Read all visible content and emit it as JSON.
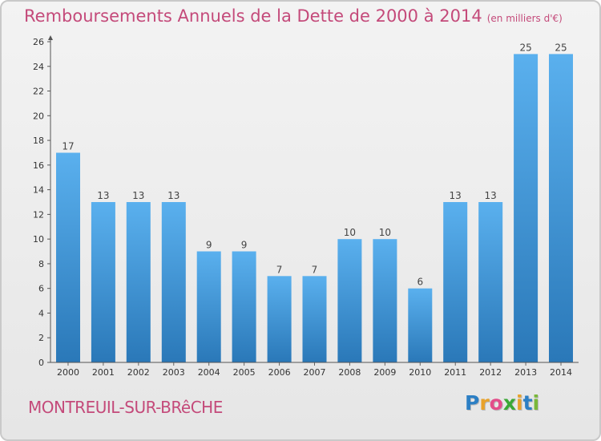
{
  "title": "Remboursements Annuels de la Dette de 2000 à 2014",
  "title_unit": "(en milliers d'€)",
  "place": "MONTREUIL-SUR-BRêCHE",
  "logo": {
    "letters": [
      "P",
      "r",
      "o",
      "x",
      "i",
      "t",
      "i"
    ],
    "colors": [
      "#2c7fc4",
      "#e8a22a",
      "#e34d8a",
      "#3aa836",
      "#e8a22a",
      "#2c7fc4",
      "#7ab83a"
    ]
  },
  "colors": {
    "bar_light": "#5ab0ee",
    "bar_dark": "#2a78b8",
    "accent": "#c44a7a"
  },
  "chart_data": {
    "type": "bar",
    "categories": [
      "2000",
      "2001",
      "2002",
      "2003",
      "2004",
      "2005",
      "2006",
      "2007",
      "2008",
      "2009",
      "2010",
      "2011",
      "2012",
      "2013",
      "2014"
    ],
    "values": [
      17,
      13,
      13,
      13,
      9,
      9,
      7,
      7,
      10,
      10,
      6,
      13,
      13,
      25,
      25
    ],
    "ylim": [
      0,
      26
    ],
    "yticks": [
      0,
      2,
      4,
      6,
      8,
      10,
      12,
      14,
      16,
      18,
      20,
      22,
      24,
      26
    ],
    "grid": false,
    "data_labels": true
  }
}
